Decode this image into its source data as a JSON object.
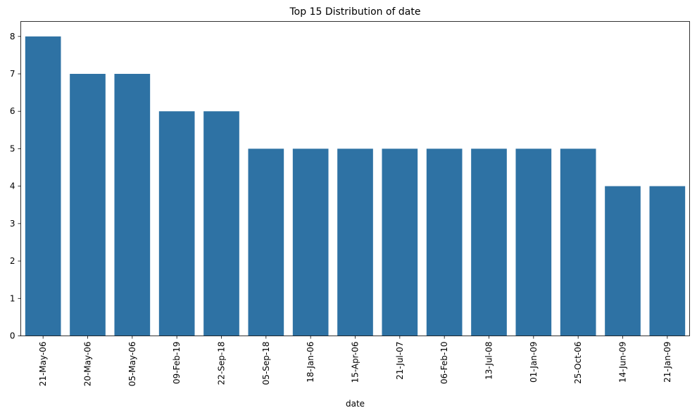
{
  "chart_data": {
    "type": "bar",
    "title": "Top 15 Distribution of date",
    "xlabel": "date",
    "ylabel": "",
    "categories": [
      "21-May-06",
      "20-May-06",
      "05-May-06",
      "09-Feb-19",
      "22-Sep-18",
      "05-Sep-18",
      "18-Jan-06",
      "15-Apr-06",
      "21-Jul-07",
      "06-Feb-10",
      "13-Jul-08",
      "01-Jan-09",
      "25-Oct-06",
      "14-Jun-09",
      "21-Jan-09"
    ],
    "values": [
      8,
      7,
      7,
      6,
      6,
      5,
      5,
      5,
      5,
      5,
      5,
      5,
      5,
      4,
      4
    ],
    "ylim": [
      0,
      8.4
    ],
    "yticks": [
      0,
      1,
      2,
      3,
      4,
      5,
      6,
      7,
      8
    ],
    "bar_color": "#2e72a4",
    "grid": false,
    "legend": "none"
  }
}
